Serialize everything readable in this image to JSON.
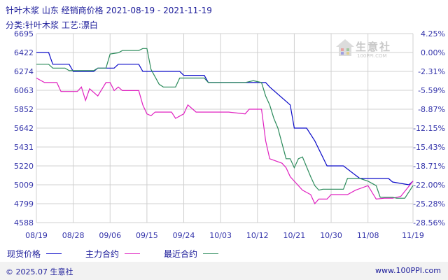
{
  "header": {
    "title": "针叶木浆 山东 经销商价格 2021-08-19 - 2021-11-19",
    "subtitle": "分类:针叶木浆 工艺:漂白"
  },
  "watermark": {
    "text": "生意社",
    "sub": "100PPI.COM"
  },
  "footer": {
    "copyright": "© 2025.07 生意社",
    "url": "www.100PPI.com"
  },
  "colors": {
    "spot": "#0a0ac8",
    "main": "#e020c0",
    "recent": "#2a8a5a",
    "grid": "#d0d0d0",
    "top_label": "#e0601a",
    "axis_text": "#3333aa"
  },
  "chart_data": {
    "type": "line",
    "title": "针叶木浆 山东 经销商价格 2021-08-19 - 2021-11-19",
    "y_ticks": [
      6695,
      6422,
      6274,
      6063,
      5852,
      5642,
      5431,
      5220,
      5009,
      4799,
      4588
    ],
    "y_right_ticks": [
      "4.25%",
      "0.00%",
      "-2.31%",
      "-5.59%",
      "-8.87%",
      "-12.15%",
      "-15.43%",
      "-18.71%",
      "-22.00%",
      "-25.28%",
      "-28.56%"
    ],
    "x_ticks": [
      "08/19",
      "08/28",
      "09/06",
      "09/15",
      "09/24",
      "10/03",
      "10/12",
      "10/21",
      "10/30",
      "11/08",
      "11/19"
    ],
    "ylim": [
      4588,
      6695
    ],
    "grid": true,
    "legend_position": "bottom",
    "series": [
      {
        "name": "现货价格",
        "points": [
          [
            "08/19",
            6422
          ],
          [
            "08/22",
            6422
          ],
          [
            "08/23",
            6330
          ],
          [
            "08/27",
            6330
          ],
          [
            "08/28",
            6274
          ],
          [
            "09/02",
            6274
          ],
          [
            "09/03",
            6300
          ],
          [
            "09/07",
            6300
          ],
          [
            "09/08",
            6330
          ],
          [
            "09/13",
            6330
          ],
          [
            "09/14",
            6274
          ],
          [
            "09/23",
            6274
          ],
          [
            "09/24",
            6230
          ],
          [
            "09/29",
            6230
          ],
          [
            "09/30",
            6150
          ],
          [
            "10/14",
            6150
          ],
          [
            "10/15",
            6100
          ],
          [
            "10/20",
            5900
          ],
          [
            "10/21",
            5642
          ],
          [
            "10/24",
            5642
          ],
          [
            "10/26",
            5500
          ],
          [
            "10/29",
            5220
          ],
          [
            "11/02",
            5220
          ],
          [
            "11/06",
            5080
          ],
          [
            "11/09",
            5080
          ],
          [
            "11/13",
            5080
          ],
          [
            "11/14",
            5040
          ],
          [
            "11/18",
            5009
          ],
          [
            "11/19",
            5050
          ]
        ]
      },
      {
        "name": "主力合约",
        "points": [
          [
            "08/19",
            6200
          ],
          [
            "08/21",
            6150
          ],
          [
            "08/24",
            6150
          ],
          [
            "08/25",
            6050
          ],
          [
            "08/29",
            6050
          ],
          [
            "08/30",
            6100
          ],
          [
            "08/31",
            5950
          ],
          [
            "09/01",
            6080
          ],
          [
            "09/03",
            6000
          ],
          [
            "09/05",
            6150
          ],
          [
            "09/06",
            6150
          ],
          [
            "09/07",
            6060
          ],
          [
            "09/08",
            6100
          ],
          [
            "09/09",
            6060
          ],
          [
            "09/13",
            6060
          ],
          [
            "09/14",
            5900
          ],
          [
            "09/15",
            5800
          ],
          [
            "09/16",
            5780
          ],
          [
            "09/17",
            5820
          ],
          [
            "09/21",
            5820
          ],
          [
            "09/22",
            5750
          ],
          [
            "09/24",
            5800
          ],
          [
            "09/25",
            5900
          ],
          [
            "09/27",
            5820
          ],
          [
            "10/01",
            5820
          ],
          [
            "10/05",
            5820
          ],
          [
            "10/09",
            5800
          ],
          [
            "10/10",
            5852
          ],
          [
            "10/13",
            5852
          ],
          [
            "10/14",
            5500
          ],
          [
            "10/15",
            5300
          ],
          [
            "10/18",
            5250
          ],
          [
            "10/19",
            5200
          ],
          [
            "10/20",
            5100
          ],
          [
            "10/23",
            4950
          ],
          [
            "10/25",
            4900
          ],
          [
            "10/26",
            4800
          ],
          [
            "10/27",
            4850
          ],
          [
            "10/29",
            4850
          ],
          [
            "10/30",
            4900
          ],
          [
            "11/03",
            4900
          ],
          [
            "11/05",
            4950
          ],
          [
            "11/08",
            5000
          ],
          [
            "11/10",
            4850
          ],
          [
            "11/12",
            4860
          ],
          [
            "11/14",
            4860
          ],
          [
            "11/16",
            4880
          ],
          [
            "11/19",
            5050
          ]
        ]
      },
      {
        "name": "最近合约",
        "points": [
          [
            "08/19",
            6330
          ],
          [
            "08/22",
            6330
          ],
          [
            "08/23",
            6300
          ],
          [
            "08/26",
            6300
          ],
          [
            "08/27",
            6280
          ],
          [
            "09/02",
            6280
          ],
          [
            "09/03",
            6300
          ],
          [
            "09/05",
            6300
          ],
          [
            "09/06",
            6410
          ],
          [
            "09/08",
            6420
          ],
          [
            "09/09",
            6450
          ],
          [
            "09/13",
            6450
          ],
          [
            "09/14",
            6480
          ],
          [
            "09/15",
            6480
          ],
          [
            "09/16",
            6290
          ],
          [
            "09/18",
            6130
          ],
          [
            "09/19",
            6100
          ],
          [
            "09/22",
            6100
          ],
          [
            "09/23",
            6200
          ],
          [
            "09/29",
            6200
          ],
          [
            "09/30",
            6150
          ],
          [
            "10/09",
            6150
          ],
          [
            "10/11",
            6170
          ],
          [
            "10/13",
            6150
          ],
          [
            "10/14",
            6000
          ],
          [
            "10/15",
            5900
          ],
          [
            "10/16",
            5750
          ],
          [
            "10/17",
            5642
          ],
          [
            "10/19",
            5300
          ],
          [
            "10/20",
            5300
          ],
          [
            "10/21",
            5200
          ],
          [
            "10/22",
            5300
          ],
          [
            "10/23",
            5320
          ],
          [
            "10/25",
            5100
          ],
          [
            "10/26",
            5000
          ],
          [
            "10/27",
            4950
          ],
          [
            "10/28",
            4960
          ],
          [
            "11/02",
            4960
          ],
          [
            "11/03",
            5080
          ],
          [
            "11/06",
            5080
          ],
          [
            "11/08",
            5050
          ],
          [
            "11/10",
            5000
          ],
          [
            "11/11",
            4870
          ],
          [
            "11/14",
            4870
          ],
          [
            "11/15",
            4860
          ],
          [
            "11/17",
            4860
          ],
          [
            "11/19",
            5000
          ]
        ]
      }
    ]
  }
}
